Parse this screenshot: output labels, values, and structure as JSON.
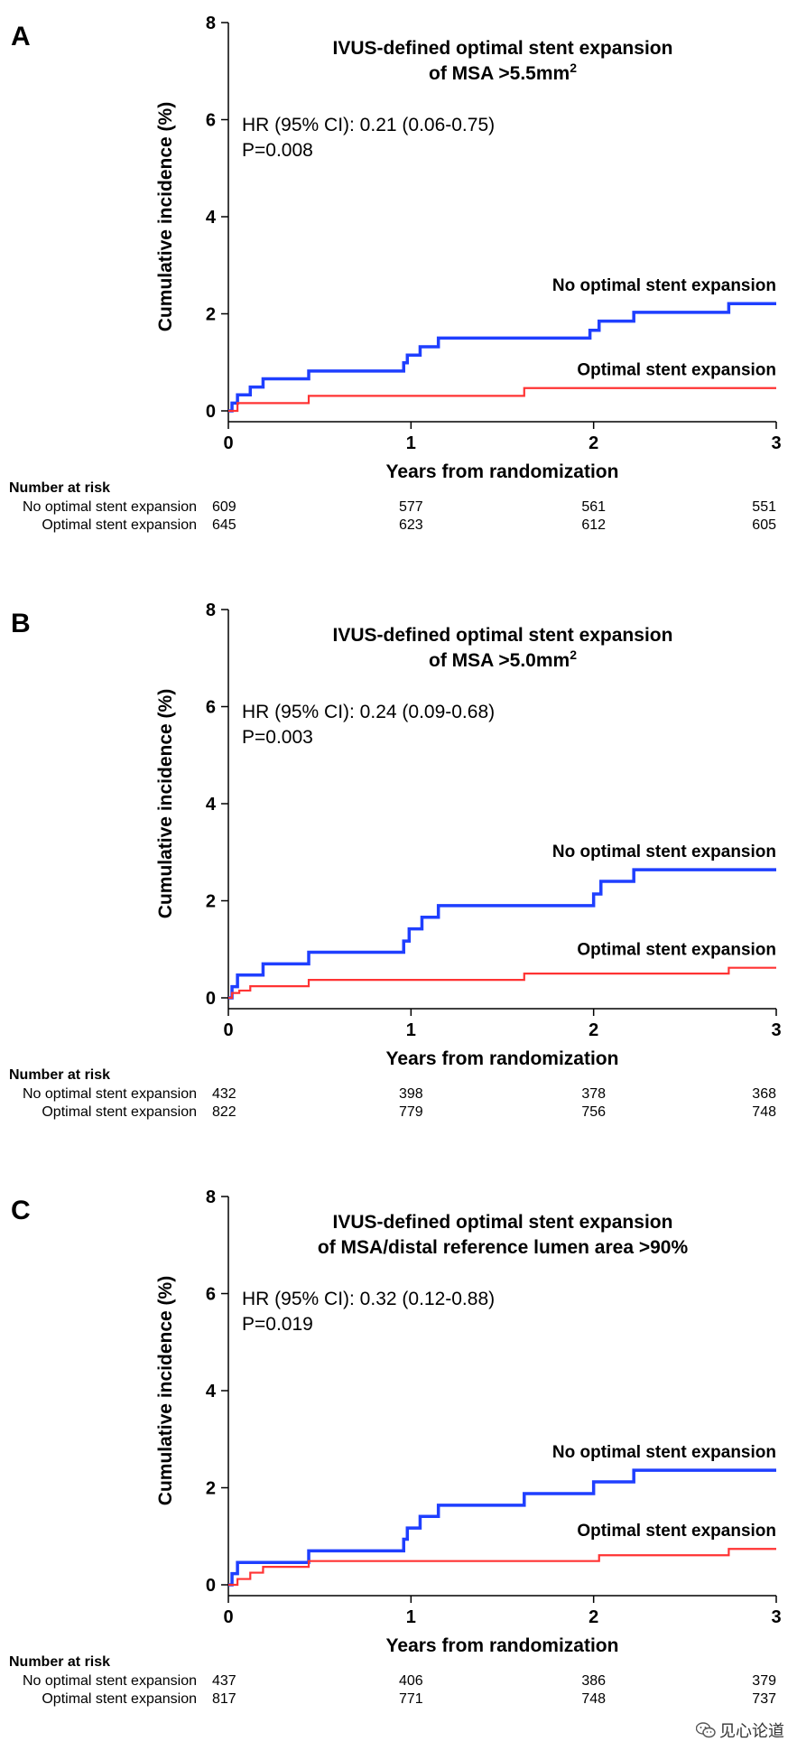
{
  "chart_data": [
    {
      "type": "line",
      "panel_label": "A",
      "title_line1": "IVUS-defined optimal stent expansion",
      "title_line2": "of MSA >5.5mm",
      "title_sup": "2",
      "hr_text": "HR (95% CI): 0.21 (0.06-0.75)",
      "p_text": "P=0.008",
      "ylabel": "Cumulative incidence (%)",
      "xlabel": "Years from randomization",
      "xlim": [
        0,
        3
      ],
      "ylim": [
        0,
        8
      ],
      "xticks": [
        0,
        1,
        2,
        3
      ],
      "yticks": [
        0,
        2,
        4,
        6,
        8
      ],
      "series": [
        {
          "name": "No optimal stent expansion",
          "color": "#1f3fff",
          "x": [
            0,
            0.02,
            0.05,
            0.12,
            0.19,
            0.44,
            0.96,
            0.98,
            1.05,
            1.15,
            1.98,
            2.03,
            2.22,
            2.74,
            3.0
          ],
          "y": [
            0,
            0.16,
            0.33,
            0.49,
            0.66,
            0.82,
            0.99,
            1.15,
            1.32,
            1.5,
            1.66,
            1.85,
            2.03,
            2.21,
            2.21
          ]
        },
        {
          "name": "Optimal stent expansion",
          "color": "#ff3333",
          "x": [
            0,
            0.05,
            0.44,
            1.62,
            3.0
          ],
          "y": [
            0,
            0.16,
            0.31,
            0.47,
            0.47
          ]
        }
      ],
      "risk_table": {
        "header": "Number at risk",
        "rows": [
          {
            "label": "No optimal stent expansion",
            "values": [
              "609",
              "577",
              "561",
              "551"
            ]
          },
          {
            "label": "Optimal stent expansion",
            "values": [
              "645",
              "623",
              "612",
              "605"
            ]
          }
        ]
      }
    },
    {
      "type": "line",
      "panel_label": "B",
      "title_line1": "IVUS-defined optimal stent expansion",
      "title_line2": "of MSA >5.0mm",
      "title_sup": "2",
      "hr_text": "HR (95% CI): 0.24 (0.09-0.68)",
      "p_text": "P=0.003",
      "ylabel": "Cumulative incidence (%)",
      "xlabel": "Years from randomization",
      "xlim": [
        0,
        3
      ],
      "ylim": [
        0,
        8
      ],
      "xticks": [
        0,
        1,
        2,
        3
      ],
      "yticks": [
        0,
        2,
        4,
        6,
        8
      ],
      "series": [
        {
          "name": "No optimal stent expansion",
          "color": "#1f3fff",
          "x": [
            0,
            0.02,
            0.05,
            0.19,
            0.44,
            0.96,
            0.99,
            1.06,
            1.15,
            2.0,
            2.04,
            2.22,
            3.0
          ],
          "y": [
            0,
            0.23,
            0.47,
            0.7,
            0.94,
            1.17,
            1.42,
            1.66,
            1.9,
            2.14,
            2.4,
            2.64,
            2.64
          ]
        },
        {
          "name": "Optimal stent expansion",
          "color": "#ff3333",
          "x": [
            0,
            0.02,
            0.06,
            0.12,
            0.44,
            1.62,
            2.74,
            3.0
          ],
          "y": [
            0,
            0.1,
            0.15,
            0.24,
            0.37,
            0.5,
            0.62,
            0.62
          ]
        }
      ],
      "risk_table": {
        "header": "Number at risk",
        "rows": [
          {
            "label": "No optimal stent expansion",
            "values": [
              "432",
              "398",
              "378",
              "368"
            ]
          },
          {
            "label": "Optimal stent expansion",
            "values": [
              "822",
              "779",
              "756",
              "748"
            ]
          }
        ]
      }
    },
    {
      "type": "line",
      "panel_label": "C",
      "title_line1": "IVUS-defined optimal stent expansion",
      "title_line2": "of MSA/distal reference lumen area >90%",
      "title_sup": "",
      "hr_text": "HR (95% CI): 0.32 (0.12-0.88)",
      "p_text": "P=0.019",
      "ylabel": "Cumulative incidence (%)",
      "xlabel": "Years from randomization",
      "xlim": [
        0,
        3
      ],
      "ylim": [
        0,
        8
      ],
      "xticks": [
        0,
        1,
        2,
        3
      ],
      "yticks": [
        0,
        2,
        4,
        6,
        8
      ],
      "series": [
        {
          "name": "No optimal stent expansion",
          "color": "#1f3fff",
          "x": [
            0,
            0.02,
            0.05,
            0.44,
            0.96,
            0.98,
            1.05,
            1.15,
            1.62,
            2.0,
            2.22,
            3.0
          ],
          "y": [
            0,
            0.23,
            0.46,
            0.7,
            0.94,
            1.17,
            1.41,
            1.64,
            1.88,
            2.12,
            2.36,
            2.36
          ]
        },
        {
          "name": "Optimal stent expansion",
          "color": "#ff3333",
          "x": [
            0,
            0.05,
            0.12,
            0.19,
            0.44,
            2.03,
            2.74,
            3.0
          ],
          "y": [
            0,
            0.12,
            0.25,
            0.37,
            0.49,
            0.61,
            0.74,
            0.74
          ]
        }
      ],
      "risk_table": {
        "header": "Number at risk",
        "rows": [
          {
            "label": "No optimal stent expansion",
            "values": [
              "437",
              "406",
              "386",
              "379"
            ]
          },
          {
            "label": "Optimal stent expansion",
            "values": [
              "817",
              "771",
              "748",
              "737"
            ]
          }
        ]
      }
    }
  ],
  "watermark": {
    "icon": "wechat-icon",
    "text": "见心论道"
  }
}
